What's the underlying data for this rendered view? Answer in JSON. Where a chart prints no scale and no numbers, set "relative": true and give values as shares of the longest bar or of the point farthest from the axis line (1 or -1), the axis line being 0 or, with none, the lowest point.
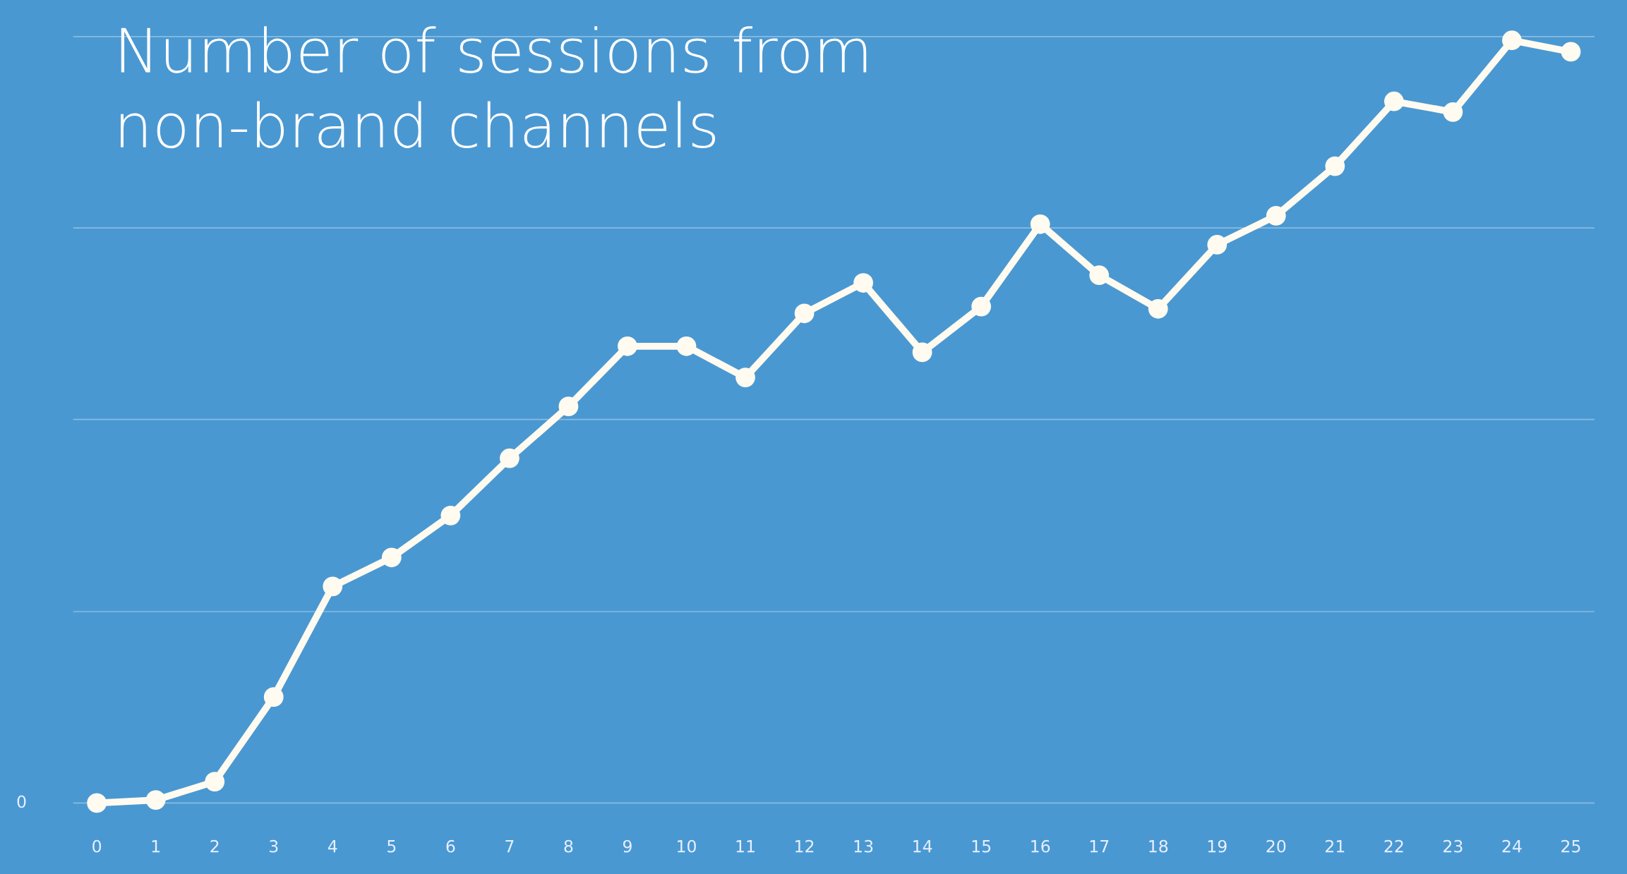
{
  "chart_data": {
    "type": "line",
    "title": "Number of sessions from\nnon-brand channels",
    "relative": true,
    "categories": [
      "0",
      "1",
      "2",
      "3",
      "4",
      "5",
      "6",
      "7",
      "8",
      "9",
      "10",
      "11",
      "12",
      "13",
      "14",
      "15",
      "16",
      "17",
      "18",
      "19",
      "20",
      "21",
      "22",
      "23",
      "24",
      "25"
    ],
    "series": [
      {
        "color": "#fffbf0",
        "values": [
          0,
          0.004,
          0.028,
          0.139,
          0.284,
          0.322,
          0.377,
          0.452,
          0.52,
          0.599,
          0.599,
          0.558,
          0.642,
          0.682,
          0.591,
          0.651,
          0.759,
          0.692,
          0.648,
          0.732,
          0.77,
          0.835,
          0.92,
          0.906,
          1,
          0.985
        ]
      }
    ],
    "annotations": [
      "0"
    ],
    "ref_lines": [
      {
        "axis": "y",
        "value": 0
      },
      {
        "axis": "y",
        "value": 0.251
      },
      {
        "axis": "y",
        "value": 0.503
      },
      {
        "axis": "y",
        "value": 0.754
      },
      {
        "axis": "y",
        "value": 1.005
      }
    ],
    "marker": "circle",
    "line_style": "solid",
    "legend": false
  }
}
